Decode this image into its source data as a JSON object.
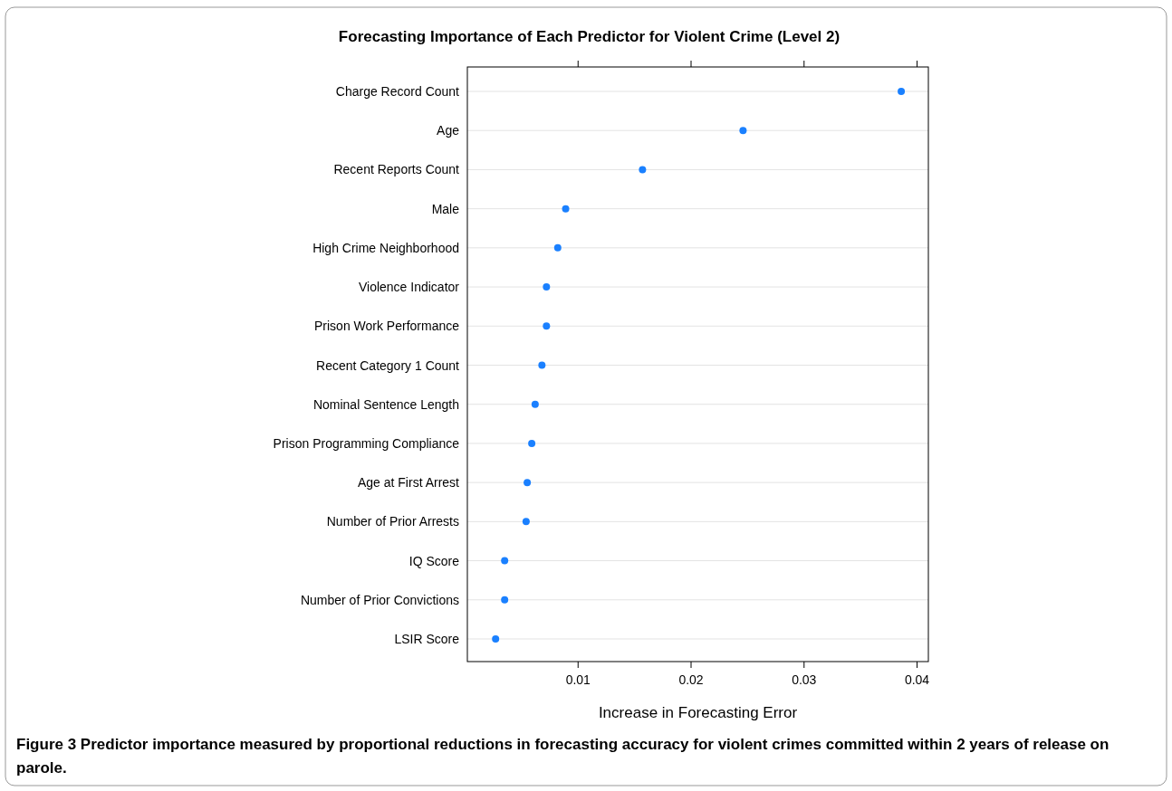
{
  "chart_data": {
    "type": "scatter",
    "orientation": "horizontal",
    "title": "Forecasting Importance of Each Predictor for Violent Crime (Level 2)",
    "xlabel": "Increase in Forecasting Error",
    "categories": [
      "Charge Record Count",
      "Age",
      "Recent Reports Count",
      "Male",
      "High Crime Neighborhood",
      "Violence Indicator",
      "Prison Work Performance",
      "Recent Category 1 Count",
      "Nominal Sentence Length",
      "Prison Programming Compliance",
      "Age at First Arrest",
      "Number of Prior Arrests",
      "IQ Score",
      "Number of Prior Convictions",
      "LSIR Score"
    ],
    "values": [
      0.0386,
      0.0246,
      0.0157,
      0.0089,
      0.0082,
      0.0072,
      0.0072,
      0.0068,
      0.0062,
      0.0059,
      0.0055,
      0.0054,
      0.0035,
      0.0035,
      0.0027
    ],
    "color": "#1a80ff",
    "marker": "circle",
    "grid": "y",
    "xlim": [
      0.0002,
      0.041
    ],
    "xticks": [
      0.01,
      0.02,
      0.03,
      0.04
    ],
    "annotations": [
      "Figure 3 Predictor importance measured by proportional reductions in forecasting accuracy for violent crimes committed within 2 years of release on parole."
    ]
  }
}
